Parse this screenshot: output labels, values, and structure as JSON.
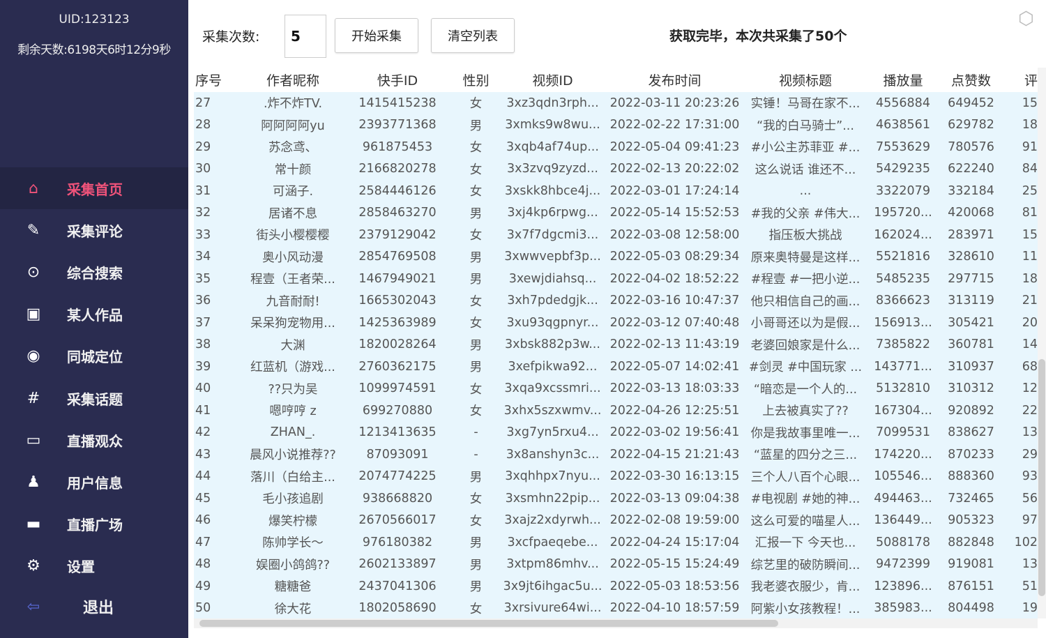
{
  "sidebar": {
    "uid": "UID:123123",
    "remaining": "剩余天数:6198天6时12分9秒",
    "items": [
      {
        "label": "采集首页",
        "icon": "home-icon"
      },
      {
        "label": "采集评论",
        "icon": "edit-icon"
      },
      {
        "label": "综合搜索",
        "icon": "search-icon"
      },
      {
        "label": "某人作品",
        "icon": "image-icon"
      },
      {
        "label": "同城定位",
        "icon": "location-icon"
      },
      {
        "label": "采集话题",
        "icon": "hashtag-icon"
      },
      {
        "label": "直播观众",
        "icon": "live-tv-icon"
      },
      {
        "label": "用户信息",
        "icon": "user-icon"
      },
      {
        "label": "直播广场",
        "icon": "live-monitor-icon"
      },
      {
        "label": "设置",
        "icon": "gear-icon"
      }
    ],
    "exit": "退出",
    "active": "采集首页",
    "accent": "#f0537a"
  },
  "toolbar": {
    "count_label": "采集次数:",
    "count_value": "5",
    "start": "开始采集",
    "clear": "清空列表",
    "status": "获取完毕，本次共采集了50个"
  },
  "table": {
    "headers": [
      "序号",
      "作者昵称",
      "快手ID",
      "性别",
      "视频ID",
      "发布时间",
      "视频标题",
      "播放量",
      "点赞数",
      "评"
    ],
    "rows": [
      [
        "27",
        ".炸不炸TV.",
        "1415415238",
        "女",
        "3xz3qdn3rph...",
        "2022-03-11 20:23:26",
        "实锤！马哥在家不...",
        "4556884",
        "649452",
        "15"
      ],
      [
        "28",
        "阿阿阿阿yu",
        "2393771368",
        "男",
        "3xmks9w8wu...",
        "2022-02-22 17:31:00",
        "“我的白马骑士”...",
        "4638561",
        "629782",
        "18"
      ],
      [
        "29",
        "苏念鸢、",
        "961875453",
        "女",
        "3xqb4af74up...",
        "2022-05-04 09:41:23",
        "#小公主苏菲亚 #...",
        "7553629",
        "780576",
        "91"
      ],
      [
        "30",
        "常十颜",
        "2166820278",
        "女",
        "3x3zvq9zyzd...",
        "2022-02-13 20:22:02",
        "这么说话 谁还不...",
        "5429235",
        "622240",
        "84"
      ],
      [
        "31",
        "可涵子.",
        "2584446126",
        "女",
        "3xskk8hbce4j...",
        "2022-03-01 17:24:14",
        "...",
        "3322079",
        "332184",
        "25"
      ],
      [
        "32",
        "居诸不息",
        "2858463270",
        "男",
        "3xj4kp6rpwg...",
        "2022-05-14 15:52:53",
        "#我的父亲 #伟大...",
        "195720...",
        "420068",
        "81"
      ],
      [
        "33",
        "街头小樱樱樱",
        "2379129042",
        "女",
        "3x7f7dgcmi3...",
        "2022-03-08 12:58:00",
        "指压板大挑战",
        "162024...",
        "283971",
        "15"
      ],
      [
        "34",
        "奥小风动漫",
        "2854769508",
        "男",
        "3xwwvepbf3p...",
        "2022-05-03 08:29:34",
        "原来奥特曼是这样...",
        "5521816",
        "328610",
        "11"
      ],
      [
        "35",
        "程壹（王者荣...",
        "1467949021",
        "男",
        "3xewjdiahsq...",
        "2022-04-02 18:52:22",
        "#程壹 #一把小逆...",
        "5485235",
        "297715",
        "18"
      ],
      [
        "36",
        "九音耐耐!",
        "1665302043",
        "女",
        "3xh7pdedgjk...",
        "2022-03-16 10:47:37",
        "他只相信自己的画...",
        "8366623",
        "313119",
        "21"
      ],
      [
        "37",
        "呆呆狗宠物用...",
        "1425363989",
        "女",
        "3xu93qgpnyr...",
        "2022-03-12 07:40:48",
        "小哥哥还以为是假...",
        "156913...",
        "305421",
        "20"
      ],
      [
        "38",
        "大渊",
        "1820028264",
        "男",
        "3xbsk882p3w...",
        "2022-02-13 11:43:19",
        "老婆回娘家是什么...",
        "7385822",
        "360781",
        "14"
      ],
      [
        "39",
        "红蓝机（游戏...",
        "2760362175",
        "男",
        "3xefpikwa92...",
        "2022-05-07 14:02:41",
        "#剑灵 #中国玩家 ...",
        "143771...",
        "310937",
        "68"
      ],
      [
        "40",
        "??只为吴",
        "1099974591",
        "女",
        "3xqa9xcssmri...",
        "2022-03-13 18:03:33",
        "“暗恋是一个人的...",
        "5132810",
        "310312",
        "12"
      ],
      [
        "41",
        "嗯哼哼 z",
        "699270880",
        "女",
        "3xhx5szxwmv...",
        "2022-04-26 12:25:51",
        "上去被真实了??",
        "167304...",
        "920892",
        "22"
      ],
      [
        "42",
        "ZHAN_.",
        "1213413635",
        "-",
        "3xg7yn5rxu4...",
        "2022-03-02 19:56:41",
        "你是我故事里唯一...",
        "7099531",
        "838627",
        "13"
      ],
      [
        "43",
        "晨风小说推荐??",
        "87093091",
        "-",
        "3x8anshyn3c...",
        "2022-04-15 21:21:43",
        "“蓝星的四分之三...",
        "174220...",
        "870233",
        "29"
      ],
      [
        "44",
        "落川（白给主...",
        "2074774225",
        "男",
        "3xqhhpx7nyu...",
        "2022-03-30 16:13:15",
        "三个人八百个心眼...",
        "105546...",
        "888360",
        "93"
      ],
      [
        "45",
        "毛小孩追剧",
        "938668820",
        "女",
        "3xsmhn22pip...",
        "2022-03-13 09:04:38",
        "#电视剧 #她的神...",
        "494463...",
        "732465",
        "56"
      ],
      [
        "46",
        "爆笑柠檬",
        "2670566017",
        "女",
        "3xajz2xdyrwh...",
        "2022-02-08 19:59:00",
        "这么可爱的喵星人...",
        "136449...",
        "905323",
        "97"
      ],
      [
        "47",
        "陈帅学长～",
        "976180382",
        "男",
        "3xcfpaeqebe...",
        "2022-04-24 15:17:04",
        "汇报一下 今天也...",
        "5088178",
        "882848",
        "102"
      ],
      [
        "48",
        "娱圈小鸽鸽??",
        "2602133897",
        "男",
        "3xtpm86mhv...",
        "2022-05-15 15:24:49",
        "综艺里的破防瞬间...",
        "9472399",
        "919081",
        "13"
      ],
      [
        "49",
        "糖糖爸",
        "2437041306",
        "男",
        "3x9jt6ihgac5u...",
        "2022-05-03 18:53:56",
        "我老婆衣服少，肯...",
        "123896...",
        "876151",
        "51"
      ],
      [
        "50",
        "徐大花",
        "1802058690",
        "女",
        "3xrsivure64wi...",
        "2022-04-10 18:57:59",
        "阿紫小女孩教程！...",
        "385983...",
        "804498",
        "19"
      ]
    ]
  },
  "colors": {
    "sidebar_bg": "#2a2c50",
    "row_bg": "#e8f6fd"
  }
}
